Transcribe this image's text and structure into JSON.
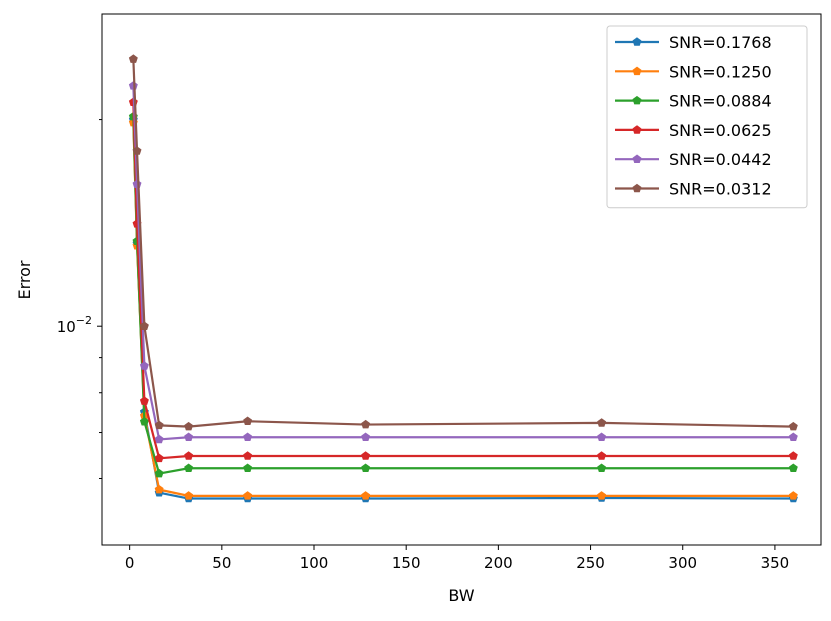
{
  "chart_data": {
    "type": "line",
    "xlabel": "BW",
    "ylabel": "Error",
    "y_scale": "log",
    "xlim": [
      -15,
      375
    ],
    "ylim": [
      0.0048,
      0.0285
    ],
    "x_ticks": [
      0,
      50,
      100,
      150,
      200,
      250,
      300,
      350
    ],
    "x_tick_labels": [
      "0",
      "50",
      "100",
      "150",
      "200",
      "250",
      "300",
      "350"
    ],
    "y_major_tick": 0.01,
    "y_major_tick_label": "10",
    "y_major_tick_exponent": "−2",
    "y_minor_ticks": [
      0.006,
      0.007,
      0.008,
      0.009,
      0.02
    ],
    "legend_position": "upper-right",
    "marker": "pentagon",
    "grid": false,
    "x": [
      2,
      4,
      8,
      16,
      32,
      64,
      128,
      256,
      360
    ],
    "series": [
      {
        "name": "SNR=0.1768",
        "color": "#1f77b4",
        "values": [
          0.02,
          0.0132,
          0.0075,
          0.00572,
          0.00561,
          0.00561,
          0.00561,
          0.00562,
          0.00561
        ]
      },
      {
        "name": "SNR=0.1250",
        "color": "#ff7f0e",
        "values": [
          0.0198,
          0.0131,
          0.0074,
          0.00578,
          0.00566,
          0.00566,
          0.00566,
          0.00566,
          0.00566
        ]
      },
      {
        "name": "SNR=0.0884",
        "color": "#2ca02c",
        "values": [
          0.0202,
          0.0133,
          0.00726,
          0.0061,
          0.00621,
          0.00621,
          0.00621,
          0.00621,
          0.00621
        ]
      },
      {
        "name": "SNR=0.0625",
        "color": "#d62728",
        "values": [
          0.0212,
          0.0141,
          0.00778,
          0.00642,
          0.00647,
          0.00647,
          0.00647,
          0.00647,
          0.00647
        ]
      },
      {
        "name": "SNR=0.0442",
        "color": "#9467bd",
        "values": [
          0.0224,
          0.0161,
          0.00875,
          0.00684,
          0.00689,
          0.00689,
          0.00689,
          0.00689,
          0.00689
        ]
      },
      {
        "name": "SNR=0.0312",
        "color": "#8c564b",
        "values": [
          0.0245,
          0.018,
          0.01,
          0.00717,
          0.00714,
          0.00727,
          0.00719,
          0.00723,
          0.00714
        ]
      }
    ]
  }
}
